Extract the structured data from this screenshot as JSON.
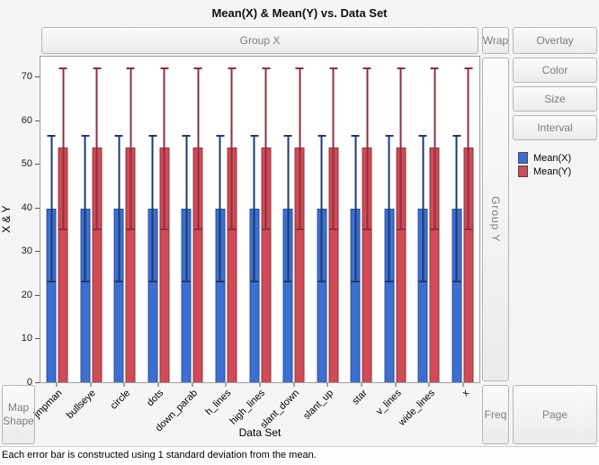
{
  "title": "Mean(X) & Mean(Y) vs. Data Set",
  "zones": {
    "group_x": "Group X",
    "wrap": "Wrap",
    "overlay": "Overlay",
    "color": "Color",
    "size": "Size",
    "interval": "Interval",
    "group_y": "Group Y",
    "map_line1": "Map",
    "map_line2": "Shape",
    "freq": "Freq",
    "page": "Page"
  },
  "legend": {
    "items": [
      {
        "label": "Mean(X)",
        "color": "#3B6FD1"
      },
      {
        "label": "Mean(Y)",
        "color": "#CE4B57"
      }
    ]
  },
  "caption": "Each error bar is constructed using 1 standard deviation from the mean.",
  "chart_data": {
    "type": "bar",
    "title": "Mean(X) & Mean(Y) vs. Data Set",
    "xlabel": "Data Set",
    "ylabel": "X & Y",
    "ylim": [
      0,
      75
    ],
    "yticks": [
      0,
      10,
      20,
      30,
      40,
      50,
      60,
      70
    ],
    "grid": false,
    "legend_position": "right",
    "error_bars": "1 standard deviation",
    "categories": [
      "jmpman",
      "bullseye",
      "circle",
      "dots",
      "down_parab",
      "h_lines",
      "high_lines",
      "slant_down",
      "slant_up",
      "star",
      "v_lines",
      "wide_lines",
      "x"
    ],
    "series": [
      {
        "name": "Mean(X)",
        "color": "#3B6FD1",
        "whisker_color": "#1E3A6E",
        "values": [
          40,
          40,
          40,
          40,
          40,
          40,
          40,
          40,
          40,
          40,
          40,
          40,
          40
        ],
        "error_low": [
          23,
          23,
          23,
          23,
          23,
          23,
          23,
          23,
          23,
          23,
          23,
          23,
          23
        ],
        "error_high": [
          57,
          57,
          57,
          57,
          57,
          57,
          57,
          57,
          57,
          57,
          57,
          57,
          57
        ]
      },
      {
        "name": "Mean(Y)",
        "color": "#CE4B57",
        "whisker_color": "#8E2F3B",
        "values": [
          54,
          54,
          54,
          54,
          54,
          54,
          54,
          54,
          54,
          54,
          54,
          54,
          54
        ],
        "error_low": [
          35,
          35,
          35,
          35,
          35,
          35,
          35,
          35,
          35,
          35,
          35,
          35,
          35
        ],
        "error_high": [
          72.5,
          72.5,
          72.5,
          72.5,
          72.5,
          72.5,
          72.5,
          72.5,
          72.5,
          72.5,
          72.5,
          72.5,
          72.5
        ]
      }
    ]
  }
}
